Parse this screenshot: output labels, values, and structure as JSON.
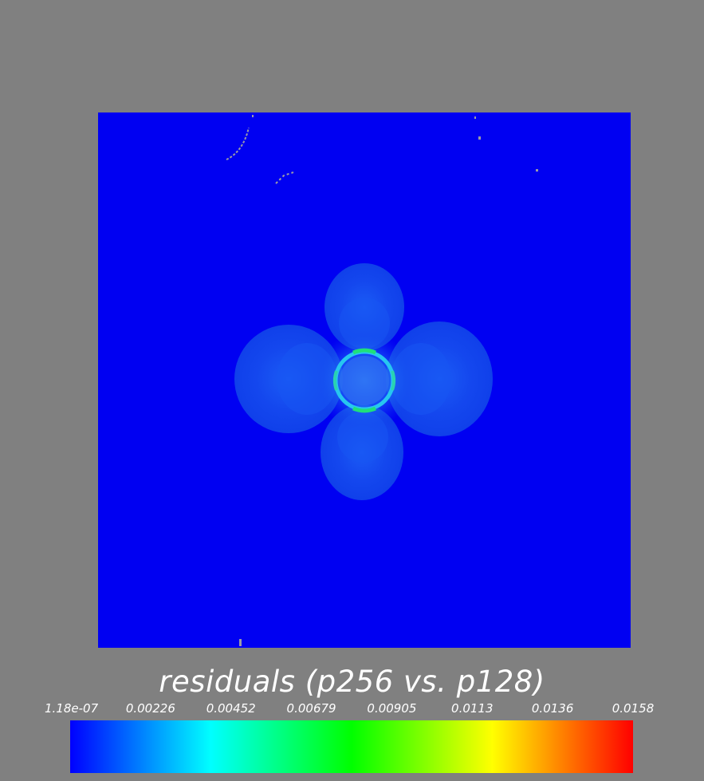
{
  "chart_data": {
    "type": "heatmap",
    "title": "residuals (p256 vs. p128)",
    "colorbar": {
      "min": 1.18e-07,
      "max": 0.0158,
      "tick_labels": [
        "1.18e-07",
        "0.00226",
        "0.00452",
        "0.00679",
        "0.00905",
        "0.0113",
        "0.0136",
        "0.0158"
      ],
      "colormap": [
        "#0000ff",
        "#00ffff",
        "#00ff00",
        "#ffff00",
        "#ff0000"
      ]
    },
    "description_values": {
      "background_residual": 1.18e-07,
      "lobe_residual": 0.0011,
      "ring_residual": 0.0068
    }
  },
  "colors": {
    "page_background": "#808080",
    "field_background": "#0000f2"
  }
}
